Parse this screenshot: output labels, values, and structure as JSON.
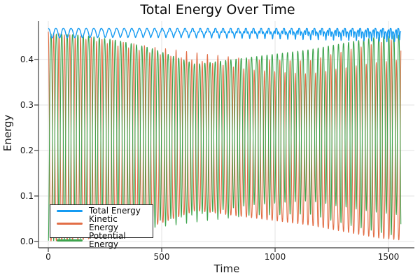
{
  "chart_data": {
    "type": "line",
    "title": "Total Energy Over Time",
    "xlabel": "Time",
    "ylabel": "Energy",
    "xlim": [
      -40,
      1610
    ],
    "ylim": [
      -0.014,
      0.485
    ],
    "grid": true,
    "legend": {
      "position": "bottom-left"
    },
    "x_ticks": {
      "values": [
        0,
        500,
        1000,
        1500
      ],
      "labels": [
        "0",
        "500",
        "1000",
        "1500"
      ]
    },
    "y_ticks": {
      "values": [
        0.0,
        0.1,
        0.2,
        0.3,
        0.4
      ],
      "labels": [
        "0.0",
        "0.1",
        "0.2",
        "0.3",
        "0.4"
      ]
    },
    "t_start": 0,
    "t_end": 1555,
    "series": [
      {
        "name": "Total Energy",
        "color": "#159BF2",
        "width": 1.4,
        "model": {
          "kind": "total",
          "base": 0.4685,
          "scallop_period": 33.5,
          "scallop_depth_start": 0.021,
          "scallop_depth_end": 0.009,
          "scallop_sharp": 1.3,
          "jag_period": 11.2,
          "jag_phase": 1.3,
          "jag_depth_start": 0.0005,
          "jag_depth_end": 0.022,
          "jag_ramp_pow": 1.8,
          "jag_sharp": 3
        }
      },
      {
        "name": "Kinetic Energy",
        "color": "#E26E46",
        "width": 1.1,
        "model": {
          "kind": "oscillator",
          "period_start": 23.8,
          "period_end": 22.0,
          "peak_sharp": 1.35,
          "alt_mod": 0.07,
          "alt_phase": 0.6,
          "envelope_t": [
            0,
            150,
            300,
            450,
            650,
            900,
            1150,
            1300,
            1450,
            1555
          ],
          "envelope_max": [
            0.461,
            0.452,
            0.442,
            0.43,
            0.417,
            0.402,
            0.401,
            0.422,
            0.442,
            0.453
          ],
          "envelope_min": [
            0.001,
            0.004,
            0.015,
            0.032,
            0.068,
            0.052,
            0.036,
            0.022,
            0.008,
            0.003
          ]
        }
      },
      {
        "name": "Potential Energy",
        "color": "#3DA44D",
        "width": 1.1,
        "model": {
          "kind": "complement",
          "of": "Kinetic Energy",
          "total_base": 0.4575,
          "floor": 0.002
        }
      }
    ],
    "colors": {
      "background": "#FFFFFF",
      "grid": "#E3E3E3",
      "spine": "#3D3D3D",
      "tick_label": "#191919"
    }
  }
}
